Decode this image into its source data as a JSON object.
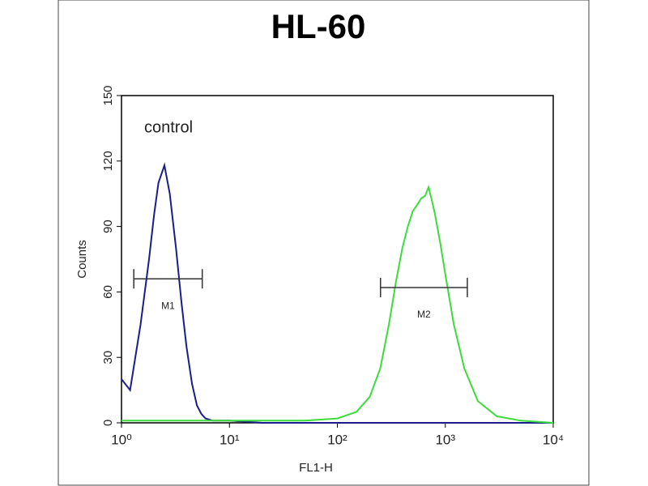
{
  "chart_data": {
    "type": "line",
    "title": "HL-60",
    "xlabel": "FL1-H",
    "ylabel": "Counts",
    "annotation": "control",
    "xscale": "log",
    "x": [
      1,
      1.2,
      1.5,
      1.8,
      2,
      2.2,
      2.5,
      2.8,
      3.2,
      3.6,
      4,
      4.5,
      5,
      5.5,
      6,
      7,
      8,
      10,
      20,
      50,
      100,
      150,
      200,
      250,
      300,
      350,
      400,
      450,
      500,
      550,
      600,
      650,
      700,
      750,
      800,
      900,
      1000,
      1200,
      1500,
      2000,
      3000,
      5000,
      10000
    ],
    "series": [
      {
        "color": "#1c1c8a",
        "values": [
          20,
          15,
          45,
          75,
          95,
          110,
          118,
          105,
          80,
          55,
          35,
          18,
          8,
          4,
          2,
          1,
          1,
          1,
          0,
          0,
          0,
          0,
          0,
          0,
          0,
          0,
          0,
          0,
          0,
          0,
          0,
          0,
          0,
          0,
          0,
          0,
          0,
          0,
          0,
          0,
          0,
          0,
          0
        ]
      },
      {
        "color": "#3ddc3d",
        "values": [
          1,
          1,
          1,
          1,
          1,
          1,
          1,
          1,
          1,
          1,
          1,
          1,
          1,
          1,
          1,
          1,
          1,
          1,
          1,
          1,
          2,
          5,
          12,
          25,
          45,
          65,
          80,
          90,
          97,
          100,
          103,
          104,
          108,
          102,
          96,
          82,
          68,
          45,
          25,
          10,
          3,
          1,
          0
        ]
      }
    ],
    "markers": [
      {
        "label": "M1",
        "x": [
          1.3,
          5.6
        ],
        "y": 66
      },
      {
        "label": "M2",
        "x": [
          251,
          1600
        ],
        "y": 62
      }
    ],
    "xlim": [
      1,
      10000
    ],
    "xticks": [
      {
        "value": 1,
        "label": "10⁰"
      },
      {
        "value": 10,
        "label": "10¹"
      },
      {
        "value": 100,
        "label": "10²"
      },
      {
        "value": 1000,
        "label": "10³"
      },
      {
        "value": 10000,
        "label": "10⁴"
      }
    ],
    "ylim": [
      0,
      150
    ],
    "yticks": [
      0,
      30,
      60,
      90,
      120,
      150
    ]
  }
}
